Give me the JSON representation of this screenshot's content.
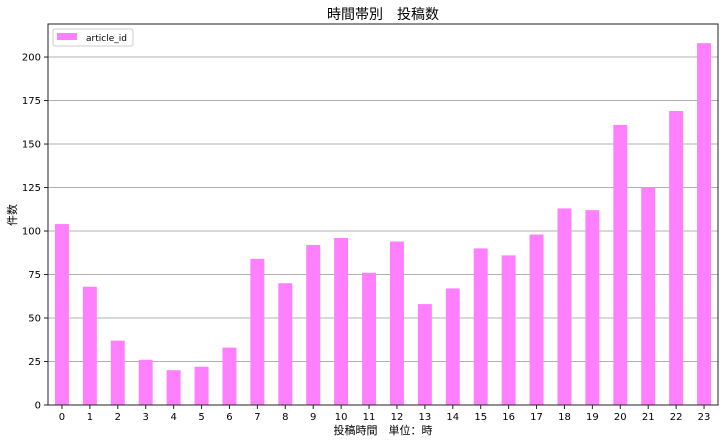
{
  "chart_data": {
    "type": "bar",
    "title": "時間帯別　投稿数",
    "xlabel": "投稿時間　単位：時",
    "ylabel": "件数",
    "categories": [
      "0",
      "1",
      "2",
      "3",
      "4",
      "5",
      "6",
      "7",
      "8",
      "9",
      "10",
      "11",
      "12",
      "13",
      "14",
      "15",
      "16",
      "17",
      "18",
      "19",
      "20",
      "21",
      "22",
      "23"
    ],
    "series": [
      {
        "name": "article_id",
        "values": [
          104,
          68,
          37,
          26,
          20,
          22,
          33,
          84,
          70,
          92,
          96,
          76,
          94,
          58,
          67,
          90,
          86,
          98,
          113,
          112,
          161,
          125,
          169,
          208
        ]
      }
    ],
    "ylim": [
      0,
      219
    ],
    "yticks": [
      0,
      25,
      50,
      75,
      100,
      125,
      150,
      175,
      200
    ],
    "grid": "horizontal",
    "legend": "top-left",
    "colors": {
      "bar": "#ff80ff",
      "grid": "#b0b0b0"
    }
  }
}
